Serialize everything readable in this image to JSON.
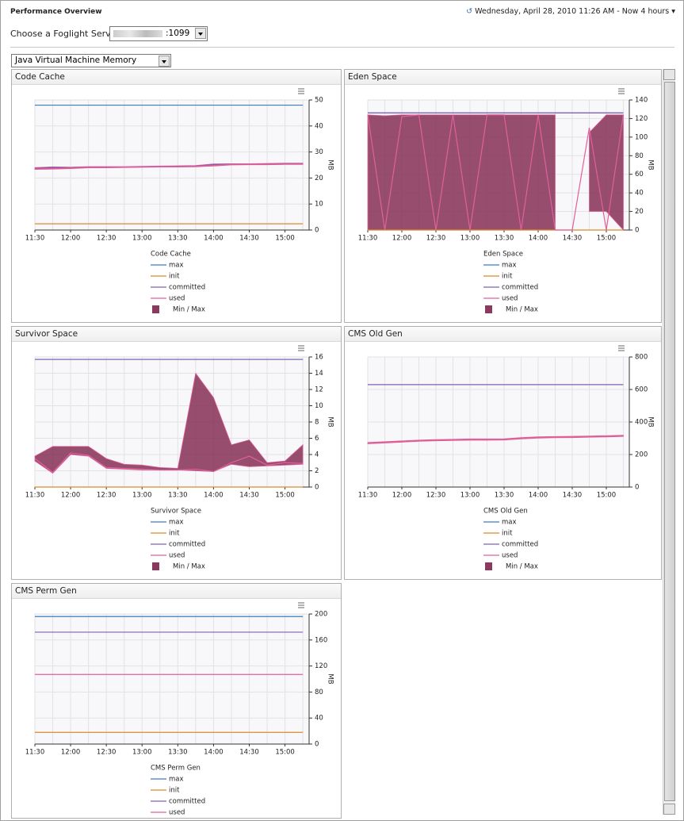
{
  "header": {
    "title": "Performance Overview",
    "timestamp": "Wednesday, April 28, 2010 11:26 AM - Now 4 hours",
    "server_label": "Choose a Foglight Server",
    "server_port": ":1099",
    "view_select": "Java Virtual Machine Memory"
  },
  "chart_data": [
    {
      "type": "line",
      "title": "Code Cache",
      "y_label": "MB",
      "categories": [
        "11:30",
        null,
        "12:00",
        null,
        "12:30",
        null,
        "13:00",
        null,
        "13:30",
        null,
        "14:00",
        null,
        "14:30",
        null,
        "15:00",
        null
      ],
      "ylim": [
        0,
        50
      ],
      "yticks": [
        0,
        10,
        20,
        30,
        40,
        50
      ],
      "grid": true,
      "series": [
        {
          "name": "Min / Max",
          "color": "#8b3a5e",
          "high": [
            24,
            24.3,
            24.2,
            24.4,
            24.4,
            24.4,
            24.5,
            24.6,
            24.7,
            24.8,
            25.4,
            25.5,
            25.5,
            25.6,
            25.7,
            25.7
          ],
          "low": [
            23.3,
            23.4,
            23.6,
            23.9,
            23.9,
            24,
            24.1,
            24.2,
            24.2,
            24.3,
            24.6,
            25,
            25.1,
            25.1,
            25.2,
            25.2
          ]
        },
        {
          "name": "max",
          "color": "#3a7ec2",
          "values": [
            48,
            48,
            48,
            48,
            48,
            48,
            48,
            48,
            48,
            48,
            48,
            48,
            48,
            48,
            48,
            48
          ]
        },
        {
          "name": "init",
          "color": "#d98a2a",
          "values": [
            2.4,
            2.4,
            2.4,
            2.4,
            2.4,
            2.4,
            2.4,
            2.4,
            2.4,
            2.4,
            2.4,
            2.4,
            2.4,
            2.4,
            2.4,
            2.4
          ]
        },
        {
          "name": "committed",
          "color": "#8060b0",
          "values": [
            23.6,
            24,
            23.9,
            24.2,
            24.2,
            24.2,
            24.3,
            24.4,
            24.5,
            24.6,
            25.2,
            25.3,
            25.3,
            25.4,
            25.5,
            25.5
          ]
        },
        {
          "name": "used",
          "color": "#e0609a",
          "values": [
            23.5,
            23.6,
            23.8,
            24.1,
            24.1,
            24.2,
            24.3,
            24.4,
            24.4,
            24.5,
            24.8,
            25.2,
            25.3,
            25.3,
            25.4,
            25.4
          ]
        }
      ]
    },
    {
      "type": "line",
      "title": "Eden Space",
      "y_label": "MB",
      "categories": [
        "11:30",
        null,
        "12:00",
        null,
        "12:30",
        null,
        "13:00",
        null,
        "13:30",
        null,
        "14:00",
        null,
        "14:30",
        null,
        "15:00",
        null
      ],
      "ylim": [
        0,
        140
      ],
      "yticks": [
        0,
        20,
        40,
        60,
        80,
        100,
        120,
        140
      ],
      "grid": true,
      "series": [
        {
          "name": "Min / Max",
          "color": "#8b3a5e",
          "high": [
            124,
            123,
            124,
            124,
            124,
            124,
            124,
            124,
            124,
            124,
            124,
            124,
            null,
            105,
            124,
            124
          ],
          "low": [
            0,
            0,
            0,
            0,
            0,
            0,
            0,
            0,
            0,
            0,
            0,
            0,
            null,
            20,
            20,
            0
          ]
        },
        {
          "name": "max",
          "color": "#3a7ec2",
          "values": [
            126,
            126,
            126,
            126,
            126,
            126,
            126,
            126,
            126,
            126,
            126,
            126,
            126,
            126,
            126,
            126
          ]
        },
        {
          "name": "init",
          "color": "#d98a2a",
          "values": [
            0,
            0,
            0,
            0,
            0,
            0,
            0,
            0,
            0,
            0,
            0,
            0,
            0,
            0,
            0,
            0
          ]
        },
        {
          "name": "committed",
          "color": "#8060b0",
          "values": [
            126,
            126,
            126,
            126,
            126,
            126,
            126,
            126,
            126,
            126,
            126,
            126,
            126,
            126,
            126,
            126
          ]
        },
        {
          "name": "used",
          "color": "#e0609a",
          "values": [
            124,
            0,
            122,
            124,
            0,
            124,
            0,
            124,
            124,
            0,
            124,
            0,
            0,
            110,
            0,
            124
          ]
        }
      ]
    },
    {
      "type": "line",
      "title": "Survivor Space",
      "y_label": "MB",
      "categories": [
        "11:30",
        null,
        "12:00",
        null,
        "12:30",
        null,
        "13:00",
        null,
        "13:30",
        null,
        "14:00",
        null,
        "14:30",
        null,
        "15:00",
        null
      ],
      "ylim": [
        0,
        16
      ],
      "yticks": [
        0,
        2,
        4,
        6,
        8,
        10,
        12,
        14,
        16
      ],
      "grid": true,
      "series": [
        {
          "name": "Min / Max",
          "color": "#8b3a5e",
          "high": [
            3.8,
            5,
            5,
            5,
            3.5,
            2.8,
            2.7,
            2.4,
            2.3,
            14,
            11,
            5.2,
            5.8,
            3,
            3.2,
            5.2
          ],
          "low": [
            3.2,
            1.7,
            4,
            3.8,
            2.3,
            2.2,
            2.1,
            2.1,
            2.1,
            2,
            1.9,
            2.8,
            2.5,
            2.6,
            2.7,
            2.8
          ]
        },
        {
          "name": "max",
          "color": "#3a7ec2",
          "values": [
            15.7,
            15.7,
            15.7,
            15.7,
            15.7,
            15.7,
            15.7,
            15.7,
            15.7,
            15.7,
            15.7,
            15.7,
            15.7,
            15.7,
            15.7,
            15.7
          ]
        },
        {
          "name": "init",
          "color": "#d98a2a",
          "values": [
            0,
            0,
            0,
            0,
            0,
            0,
            0,
            0,
            0,
            0,
            0,
            0,
            0,
            0,
            0,
            0
          ]
        },
        {
          "name": "committed",
          "color": "#8060b0",
          "values": [
            15.7,
            15.7,
            15.7,
            15.7,
            15.7,
            15.7,
            15.7,
            15.7,
            15.7,
            15.7,
            15.7,
            15.7,
            15.7,
            15.7,
            15.7,
            15.7
          ]
        },
        {
          "name": "used",
          "color": "#e0609a",
          "values": [
            3.5,
            1.8,
            4.2,
            3.9,
            2.4,
            2.3,
            2.2,
            2.1,
            2.1,
            2.2,
            1.9,
            3,
            3.8,
            2.7,
            3,
            2.9
          ]
        }
      ]
    },
    {
      "type": "line",
      "title": "CMS Old Gen",
      "y_label": "MB",
      "categories": [
        "11:30",
        null,
        "12:00",
        null,
        "12:30",
        null,
        "13:00",
        null,
        "13:30",
        null,
        "14:00",
        null,
        "14:30",
        null,
        "15:00",
        null
      ],
      "ylim": [
        0,
        800
      ],
      "yticks": [
        0,
        200,
        400,
        600,
        800
      ],
      "grid": true,
      "series": [
        {
          "name": "Min / Max",
          "color": "#8b3a5e",
          "high": [
            274,
            279,
            284,
            289,
            292,
            294,
            296,
            296,
            297,
            304,
            309,
            311,
            312,
            314,
            316,
            319
          ],
          "low": [
            266,
            271,
            276,
            281,
            284,
            286,
            288,
            288,
            289,
            296,
            301,
            303,
            304,
            306,
            308,
            311
          ]
        },
        {
          "name": "max",
          "color": "#3a7ec2",
          "values": [
            null,
            null,
            null,
            null,
            null,
            null,
            null,
            null,
            null,
            null,
            null,
            null,
            null,
            null,
            null,
            null
          ]
        },
        {
          "name": "init",
          "color": "#d98a2a",
          "values": [
            null,
            null,
            null,
            null,
            null,
            null,
            null,
            null,
            null,
            null,
            null,
            null,
            null,
            null,
            null,
            null
          ]
        },
        {
          "name": "committed",
          "color": "#8060b0",
          "values": [
            630,
            630,
            630,
            630,
            630,
            630,
            630,
            630,
            630,
            630,
            630,
            630,
            630,
            630,
            630,
            630
          ]
        },
        {
          "name": "used",
          "color": "#e0609a",
          "values": [
            270,
            275,
            280,
            285,
            288,
            290,
            292,
            292,
            293,
            300,
            305,
            307,
            308,
            310,
            312,
            315
          ]
        }
      ]
    },
    {
      "type": "line",
      "title": "CMS Perm Gen",
      "y_label": "MB",
      "categories": [
        "11:30",
        null,
        "12:00",
        null,
        "12:30",
        null,
        "13:00",
        null,
        "13:30",
        null,
        "14:00",
        null,
        "14:30",
        null,
        "15:00",
        null
      ],
      "ylim": [
        0,
        200
      ],
      "yticks": [
        0,
        40,
        80,
        120,
        160,
        200
      ],
      "grid": true,
      "series": [
        {
          "name": "max",
          "color": "#3a7ec2",
          "values": [
            196,
            196,
            196,
            196,
            196,
            196,
            196,
            196,
            196,
            196,
            196,
            196,
            196,
            196,
            196,
            196
          ]
        },
        {
          "name": "init",
          "color": "#d98a2a",
          "values": [
            18,
            18,
            18,
            18,
            18,
            18,
            18,
            18,
            18,
            18,
            18,
            18,
            18,
            18,
            18,
            18
          ]
        },
        {
          "name": "committed",
          "color": "#8060b0",
          "values": [
            172,
            172,
            172,
            172,
            172,
            172,
            172,
            172,
            172,
            172,
            172,
            172,
            172,
            172,
            172,
            172
          ]
        },
        {
          "name": "used",
          "color": "#e0609a",
          "values": [
            107,
            107,
            107,
            107,
            107,
            107,
            107,
            107,
            107,
            107,
            107,
            107,
            107,
            107,
            107,
            107
          ]
        }
      ]
    }
  ]
}
